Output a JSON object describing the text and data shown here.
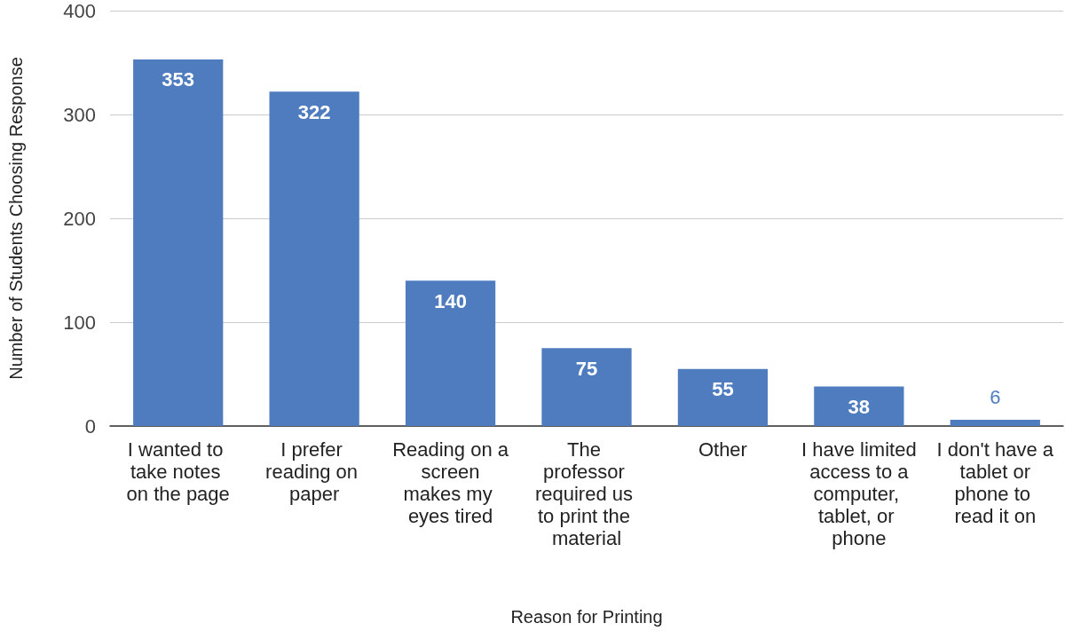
{
  "chart_data": {
    "type": "bar",
    "xlabel": "Reason for Printing",
    "ylabel": "Number of Students Choosing Response",
    "categories": [
      "I wanted to take notes on the page",
      "I prefer reading on paper",
      "Reading on a screen makes my eyes tired",
      "The professor required us to print the material",
      "Other",
      "I have limited access to a computer, tablet, or phone",
      "I don't have a tablet or phone to read it on"
    ],
    "values": [
      353,
      322,
      140,
      75,
      55,
      38,
      6
    ],
    "color": "#4e7cbf",
    "ylim": [
      0,
      400
    ],
    "yticks": [
      0,
      100,
      200,
      300,
      400
    ],
    "grid": "y",
    "data_labels": true
  }
}
